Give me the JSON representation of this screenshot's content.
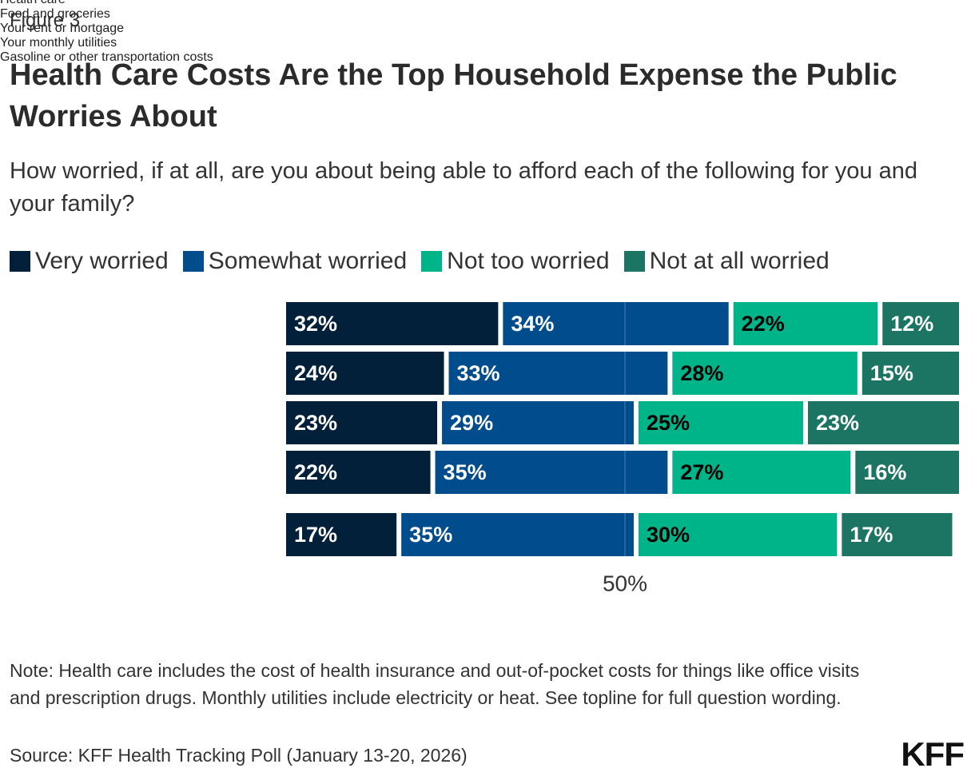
{
  "figure_label": "Figure 3",
  "chart_data": {
    "type": "stacked-bar-horizontal",
    "title": "Health Care Costs Are the Top Household Expense the Public Worries About",
    "subtitle": "How worried, if at all, are you about being able to afford each of the following for you and your family?",
    "categories": [
      "Health care",
      "Food and groceries",
      "Your rent or mortgage",
      "Your monthly utilities",
      "Gasoline or other transportation costs"
    ],
    "series": [
      {
        "name": "Very worried",
        "color": "#03203a",
        "label_color": "#ffffff",
        "values": [
          32,
          24,
          23,
          22,
          17
        ],
        "value_labels": [
          "32%",
          "24%",
          "23%",
          "22%",
          "17%"
        ]
      },
      {
        "name": "Somewhat worried",
        "color": "#004c8c",
        "label_color": "#ffffff",
        "values": [
          34,
          33,
          29,
          35,
          35
        ],
        "value_labels": [
          "34%",
          "33%",
          "29%",
          "35%",
          "35%"
        ]
      },
      {
        "name": "Not too worried",
        "color": "#00b48a",
        "label_color": "#000000",
        "values": [
          22,
          28,
          25,
          27,
          30
        ],
        "value_labels": [
          "22%",
          "28%",
          "25%",
          "27%",
          "30%"
        ]
      },
      {
        "name": "Not at all worried",
        "color": "#1b7562",
        "label_color": "#ffffff",
        "values": [
          12,
          15,
          23,
          16,
          17
        ],
        "value_labels": [
          "12%",
          "15%",
          "23%",
          "16%",
          "17%"
        ]
      }
    ],
    "xlim": [
      0,
      100
    ],
    "xticks": [
      {
        "value": 50,
        "label": "50%"
      }
    ],
    "grid": true,
    "legend": "top"
  },
  "note": "Note: Health care includes the cost of health insurance and out-of-pocket costs for things like office visits and prescription drugs. Monthly utilities include electricity or heat. See topline for full question wording.",
  "source": "Source: KFF Health Tracking Poll (January 13-20, 2026)",
  "logo": "KFF"
}
